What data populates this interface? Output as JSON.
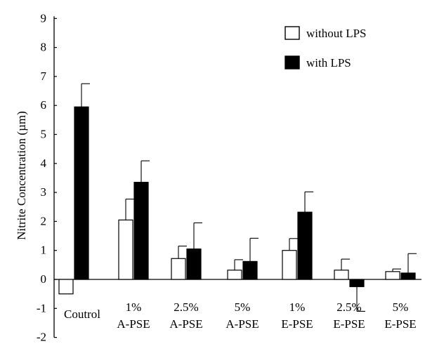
{
  "chart_data": {
    "type": "bar",
    "title": "",
    "xlabel": "",
    "ylabel": "Nitrite Concentration (µm)",
    "ylim": [
      -2,
      9
    ],
    "yticks": [
      -2,
      -1,
      0,
      1,
      2,
      3,
      4,
      5,
      6,
      7,
      8,
      9
    ],
    "categories": [
      [
        "Coutrol"
      ],
      [
        "1%",
        "A-PSE"
      ],
      [
        "2.5%",
        "A-PSE"
      ],
      [
        "5%",
        "A-PSE"
      ],
      [
        "1%",
        "E-PSE"
      ],
      [
        "2.5%",
        "E-PSE"
      ],
      [
        "5%",
        "E-PSE"
      ]
    ],
    "series": [
      {
        "name": "without LPS",
        "color": "#ffffff",
        "values": [
          -0.5,
          2.05,
          0.72,
          0.32,
          1.0,
          0.32,
          0.27
        ],
        "errors": [
          0,
          0.72,
          0.43,
          0.36,
          0.41,
          0.38,
          0.09
        ]
      },
      {
        "name": "with LPS",
        "color": "#000000",
        "values": [
          5.95,
          3.35,
          1.05,
          0.62,
          2.32,
          -0.25,
          0.22
        ],
        "errors": [
          0.8,
          0.74,
          0.9,
          0.8,
          0.7,
          0.85,
          0.67
        ]
      }
    ],
    "legend_position": "top-right",
    "grid": false
  }
}
